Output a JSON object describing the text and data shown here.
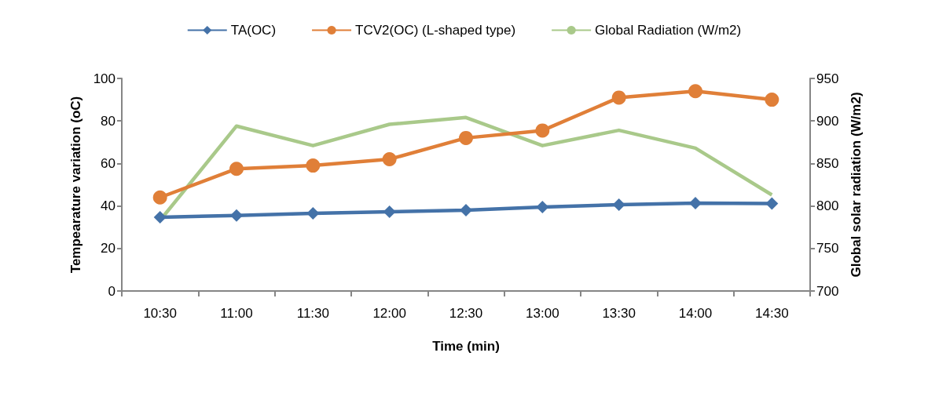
{
  "chart_data": {
    "type": "line",
    "xlabel": "Time (min)",
    "ylabel": "Tempearature variation (oC)",
    "y2label": "Global solar radiation (W/m2)",
    "categories": [
      "10:30",
      "11:00",
      "11:30",
      "12:00",
      "12:30",
      "13:00",
      "13:30",
      "14:00",
      "14:30"
    ],
    "series": [
      {
        "name": "TA(OC)",
        "color": "#4472a8",
        "marker": "diamond",
        "values": [
          34.7,
          35.5,
          36.5,
          37.3,
          38,
          39.5,
          40.6,
          41.3,
          41.1
        ]
      },
      {
        "name": "TCV2(OC) (L-shaped type)",
        "color": "#e07f38",
        "marker": "circle",
        "values": [
          44,
          57.5,
          59,
          62,
          72,
          75.5,
          91,
          94,
          90
        ]
      },
      {
        "name": "Global Radiation (W/m2)",
        "color": "#a9c98a",
        "marker": "none",
        "axis": "y2",
        "values": [
          783,
          894,
          871,
          896,
          904,
          871,
          889,
          868,
          813
        ]
      }
    ],
    "ylim": [
      0,
      100
    ],
    "yticks": [
      0,
      20,
      40,
      60,
      80,
      100
    ],
    "y2lim": [
      700,
      950
    ],
    "y2ticks": [
      700,
      750,
      800,
      850,
      900,
      950
    ],
    "grid": false,
    "legend": "top",
    "line_style": "solid"
  }
}
